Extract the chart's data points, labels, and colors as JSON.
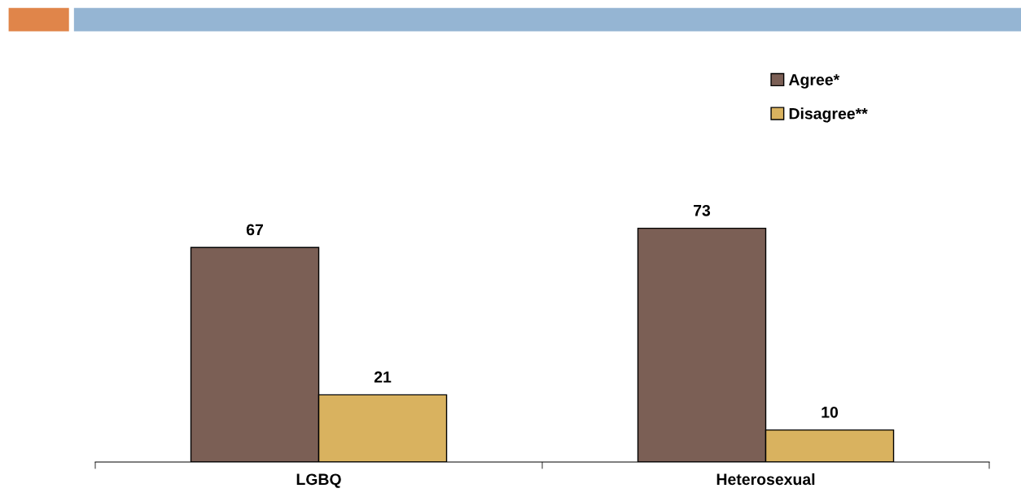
{
  "chart_data": {
    "type": "bar",
    "categories": [
      "LGBQ",
      "Heterosexual"
    ],
    "series": [
      {
        "name": "Agree*",
        "color": "#7b5f55",
        "values": [
          67,
          73
        ]
      },
      {
        "name": "Disagree**",
        "color": "#d9b25f",
        "values": [
          21,
          10
        ]
      }
    ],
    "data_labels": true,
    "legend": "top right",
    "grid": false,
    "tick_labels": "x"
  }
}
